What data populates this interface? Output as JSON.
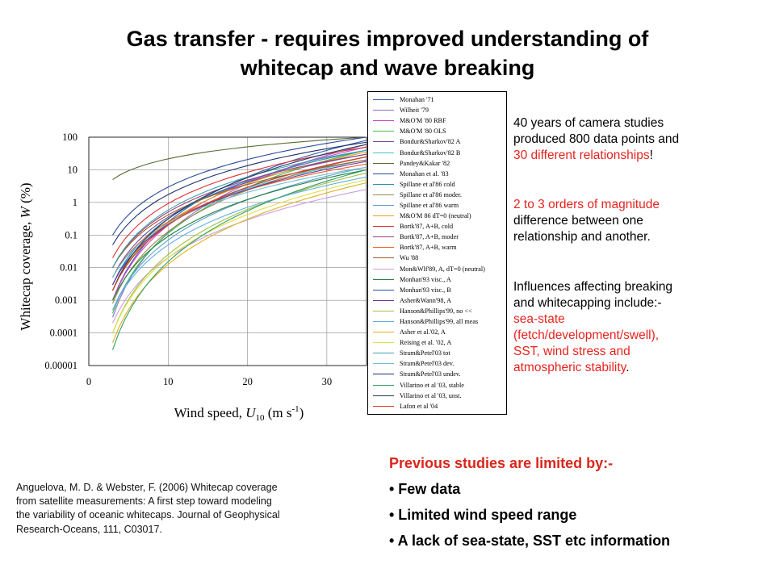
{
  "title": {
    "line1": "Gas transfer - requires improved understanding of",
    "line2": "whitecap and wave breaking"
  },
  "side_text": {
    "block1_line1": "40 years of camera studies",
    "block1_line2": "produced 800 data points and",
    "block1_line3_red": "30 different relationships",
    "block1_line3_tail": "!",
    "block2_line1_red": "2 to 3 orders of magnitude",
    "block2_line2": "difference between one",
    "block2_line3": "relationship and another.",
    "block3_line1": "Influences affecting breaking",
    "block3_line2": "and whitecapping include:-",
    "block3_line3_red": "sea-state",
    "block3_line4_red": "(fetch/development/swell),",
    "block3_line5_red": "SST, wind stress and",
    "block3_line6_red": "atmospheric stability",
    "block3_line6_tail": "."
  },
  "reference": {
    "line1": "Anguelova, M. D. & Webster, F. (2006) Whitecap coverage",
    "line2": "from satellite measurements: A first step toward modeling",
    "line3": "the variability of oceanic whitecaps. Journal of Geophysical",
    "line4": "Research-Oceans, 111, C03017."
  },
  "limitations": {
    "heading": "Previous studies are limited by:-",
    "items": [
      "• Few data",
      "• Limited wind speed range",
      "• A lack of sea-state, SST etc information"
    ]
  },
  "colors": {
    "accent_red": "#e8231e",
    "limitation_red": "#d9261c"
  },
  "chart_data": {
    "type": "line",
    "xlabel": "Wind speed, U 10 (m s-1)",
    "xlabel_parts": {
      "main": "Wind speed, ",
      "var": "U",
      "sub": "10",
      "unit_pre": " (m s",
      "sup": "-1",
      "unit_post": ")"
    },
    "ylabel": "Whitecap coverage, W (%)",
    "ylabel_parts": {
      "main": "Whitecap coverage, ",
      "var": "W",
      "unit": " (%)"
    },
    "x_ticks": [
      "0",
      "10",
      "20",
      "30"
    ],
    "y_ticks": [
      "0.00001",
      "0.0001",
      "0.001",
      "0.01",
      "0.1",
      "1",
      "10",
      "100"
    ],
    "xlim": [
      0,
      35
    ],
    "ylim": [
      1e-05,
      100
    ],
    "y_scale": "log",
    "grid": "major",
    "legend_placement": "right",
    "series": [
      {
        "name": "Monahan '71",
        "color": "#3a5fb0",
        "x": [
          3,
          35
        ],
        "y": [
          0.001,
          80
        ]
      },
      {
        "name": "Wilheit '79",
        "color": "#9a6ac0",
        "x": [
          3,
          35
        ],
        "y": [
          0.0003,
          60
        ]
      },
      {
        "name": "M&O'M '80 RBF",
        "color": "#d040d0",
        "x": [
          3,
          35
        ],
        "y": [
          0.001,
          50
        ]
      },
      {
        "name": "M&O'M '80 OLS",
        "color": "#3ac050",
        "x": [
          3,
          35
        ],
        "y": [
          0.0004,
          40
        ]
      },
      {
        "name": "Bondur&Sharkov'82 A",
        "color": "#6a4aa0",
        "x": [
          3,
          35
        ],
        "y": [
          0.005,
          30
        ]
      },
      {
        "name": "Bondur&Sharkov'82 B",
        "color": "#40c0d0",
        "x": [
          3,
          35
        ],
        "y": [
          0.003,
          20
        ]
      },
      {
        "name": "Pandey&Kakar '82",
        "color": "#556b2f",
        "x": [
          3,
          35
        ],
        "y": [
          5,
          100
        ]
      },
      {
        "name": "Monahan et al. '83",
        "color": "#2a4a9a",
        "x": [
          3,
          35
        ],
        "y": [
          0.1,
          100
        ]
      },
      {
        "name": "Spillane et al'86 cold",
        "color": "#2090b0",
        "x": [
          3,
          35
        ],
        "y": [
          0.003,
          40
        ]
      },
      {
        "name": "Spillane et al'86 moder.",
        "color": "#9a8a50",
        "x": [
          3,
          35
        ],
        "y": [
          0.0008,
          25
        ]
      },
      {
        "name": "Spillane et al'86 warm",
        "color": "#60a0d0",
        "x": [
          3,
          35
        ],
        "y": [
          0.0005,
          12
        ]
      },
      {
        "name": "M&O'M 86 dT=0 (neutral)",
        "color": "#e0a020",
        "x": [
          3,
          35
        ],
        "y": [
          0.002,
          35
        ]
      },
      {
        "name": "Bortk'87, A+B, cold",
        "color": "#e03030",
        "x": [
          3,
          35
        ],
        "y": [
          0.02,
          50
        ]
      },
      {
        "name": "Bortk'87, A+B, moder",
        "color": "#a04080",
        "x": [
          3,
          35
        ],
        "y": [
          0.01,
          30
        ]
      },
      {
        "name": "Bortk'87, A+B, warm",
        "color": "#f06020",
        "x": [
          3,
          35
        ],
        "y": [
          0.005,
          15
        ]
      },
      {
        "name": "Wu '88",
        "color": "#a05a30",
        "x": [
          3,
          35
        ],
        "y": [
          0.01,
          20
        ]
      },
      {
        "name": "Mon&Wlf'89, A, dT=0 (neutral)",
        "color": "#c8a0e0",
        "x": [
          3,
          35
        ],
        "y": [
          0.0002,
          2.5
        ]
      },
      {
        "name": "Monhan'93 visc., A",
        "color": "#208040",
        "x": [
          3,
          35
        ],
        "y": [
          0.001,
          10
        ]
      },
      {
        "name": "Monhan'93 visc., B",
        "color": "#2050a0",
        "x": [
          3,
          35
        ],
        "y": [
          0.002,
          25
        ]
      },
      {
        "name": "Asher&Wann'98, A",
        "color": "#7030a0",
        "x": [
          3,
          35
        ],
        "y": [
          0.003,
          18
        ]
      },
      {
        "name": "Hanson&Phillips'99, no <<",
        "color": "#a0c040",
        "x": [
          3,
          35
        ],
        "y": [
          0.0001,
          8
        ]
      },
      {
        "name": "Hanson&Phillips'99, all meas",
        "color": "#60b0e0",
        "x": [
          3,
          35
        ],
        "y": [
          0.0005,
          6
        ]
      },
      {
        "name": "Asher et al.'02, A",
        "color": "#e0b020",
        "x": [
          3,
          35
        ],
        "y": [
          5e-05,
          4
        ]
      },
      {
        "name": "Reising et al. '02, A",
        "color": "#e0e040",
        "x": [
          3,
          35
        ],
        "y": [
          0.0001,
          5
        ]
      },
      {
        "name": "Stram&Petel'03 tot",
        "color": "#40a0b0",
        "x": [
          3,
          35
        ],
        "y": [
          0.01,
          40
        ]
      },
      {
        "name": "Stram&Petel'03 dev.",
        "color": "#70c0d0",
        "x": [
          3,
          35
        ],
        "y": [
          0.005,
          12
        ]
      },
      {
        "name": "Stram&Petel'03 undev.",
        "color": "#1a3070",
        "x": [
          3,
          35
        ],
        "y": [
          0.05,
          70
        ]
      },
      {
        "name": "Villarino et al '03, stable",
        "color": "#30a060",
        "x": [
          3,
          35
        ],
        "y": [
          3e-05,
          10
        ]
      },
      {
        "name": "Villarino et al '03, unst.",
        "color": "#203a60",
        "x": [
          3,
          35
        ],
        "y": [
          0.002,
          60
        ]
      },
      {
        "name": "Lafon et al '04",
        "color": "#e04020",
        "x": [
          3,
          35
        ],
        "y": [
          0.002,
          25
        ]
      }
    ]
  }
}
